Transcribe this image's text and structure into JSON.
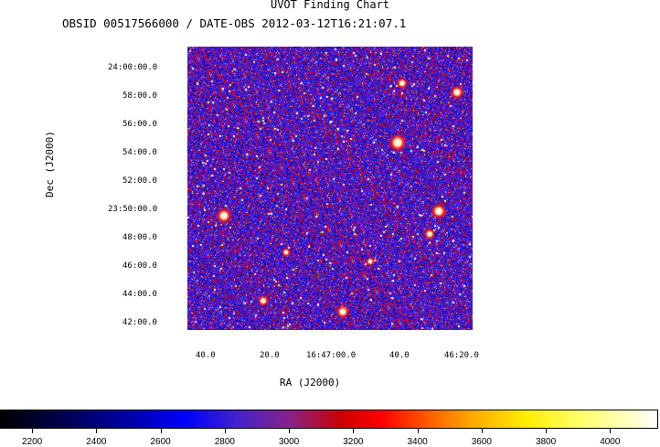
{
  "chart_data": {
    "type": "heatmap",
    "title": "UVOT Finding Chart",
    "subtitle": "OBSID 00517566000 / DATE-OBS 2012-03-12T16:21:07.1",
    "xlabel": "RA (J2000)",
    "ylabel": "Dec (J2000)",
    "x_ticks": [
      "40.0",
      "20.0",
      "16:47:00.0",
      "40.0",
      "46:20.0"
    ],
    "y_ticks": [
      "24:00:00.0",
      "58:00.0",
      "56:00.0",
      "54:00.0",
      "52:00.0",
      "23:50:00.0",
      "48:00.0",
      "46:00.0",
      "44:00.0",
      "42:00.0"
    ],
    "colorbar": {
      "ticks": [
        "2200",
        "2400",
        "2600",
        "2800",
        "3000",
        "3200",
        "3400",
        "3600",
        "3800",
        "4000"
      ],
      "range": [
        2100,
        4150
      ]
    },
    "grid": false,
    "legend": "none",
    "colors": {
      "background": "#2a1fc8",
      "noise_blue": "#3a2cf0",
      "noise_red": "#d81818",
      "star": "#ffffff"
    }
  }
}
